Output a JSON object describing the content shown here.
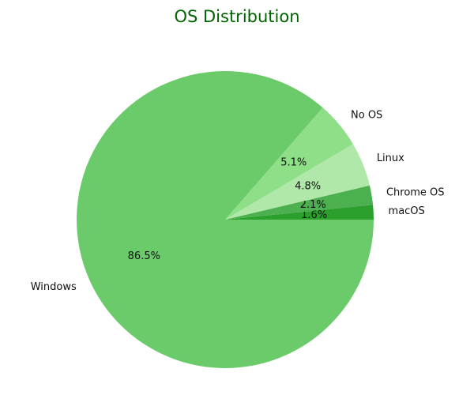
{
  "chart_data": {
    "type": "pie",
    "title": "OS Distribution",
    "categories": [
      "macOS",
      "Chrome OS",
      "Linux",
      "No OS",
      "Windows"
    ],
    "values": [
      1.6,
      2.1,
      4.8,
      5.1,
      86.5
    ],
    "value_labels": [
      "1.6%",
      "2.1%",
      "4.8%",
      "5.1%",
      "86.5%"
    ],
    "colors": [
      "#2ca02c",
      "#4caf50",
      "#b0e8aa",
      "#8fde88",
      "#6bcb6b"
    ],
    "start_angle_deg": 0,
    "direction": "counterclockwise",
    "legend": "none"
  }
}
